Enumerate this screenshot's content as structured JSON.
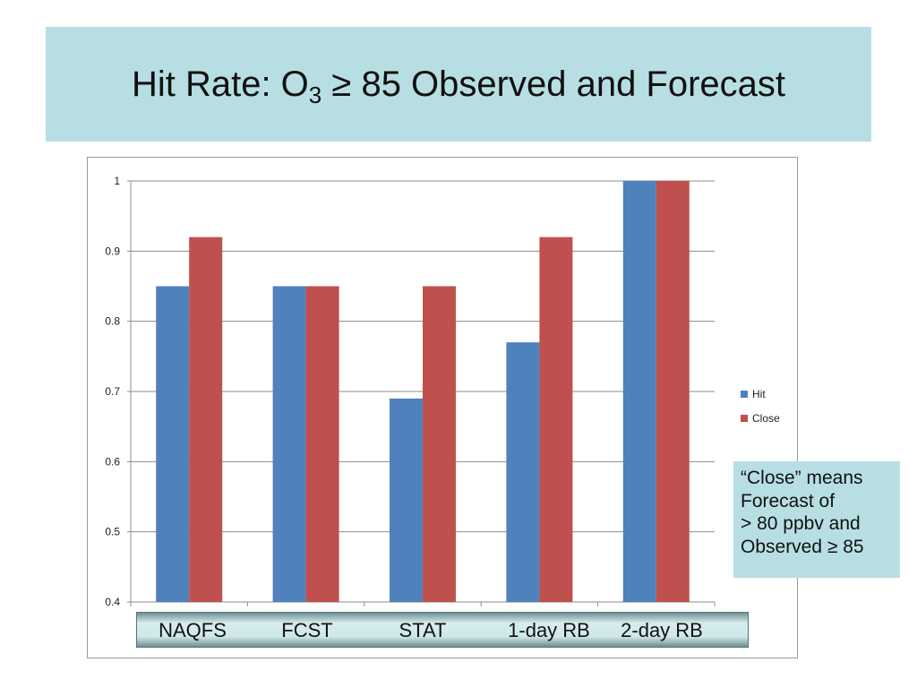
{
  "title": {
    "prefix": "Hit Rate:  O",
    "subscript": "3",
    "suffix": " ≥ 85 Observed and Forecast"
  },
  "note": {
    "lines": [
      "“Close” means",
      "Forecast of",
      "> 80 ppbv and",
      "Observed ≥ 85"
    ]
  },
  "chart_data": {
    "type": "bar",
    "categories": [
      "NAQFS",
      "FCST",
      "STAT",
      "1-day RB",
      "2-day RB"
    ],
    "series": [
      {
        "name": "Hit",
        "color": "#4f81bd",
        "values": [
          0.85,
          0.85,
          0.69,
          0.77,
          1.0
        ]
      },
      {
        "name": "Close",
        "color": "#c0504d",
        "values": [
          0.92,
          0.85,
          0.85,
          0.92,
          1.0
        ]
      }
    ],
    "yticks": [
      "1",
      "0.9",
      "0.8",
      "0.7",
      "0.6",
      "0.5",
      "0.4"
    ],
    "ylim": [
      0.4,
      1.0
    ],
    "grid": true,
    "legend_position": "right"
  }
}
